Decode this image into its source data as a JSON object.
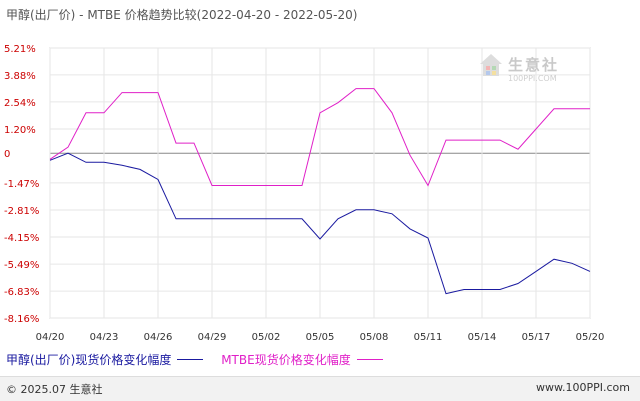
{
  "title": "甲醇(出厂价) - MTBE 价格趋势比较(2022-04-20 - 2022-05-20)",
  "watermark": {
    "name": "生意社",
    "url": "100PPI.COM"
  },
  "footer": {
    "copyright": "© 2025.07 生意社",
    "url": "www.100PPI.com"
  },
  "colors": {
    "methanol": "#1a1aa0",
    "mtbe": "#e020c8",
    "zero_line": "#888888",
    "grid": "#e6e6e6"
  },
  "chart_data": {
    "type": "line",
    "title": "甲醇(出厂价) - MTBE 价格趋势比较(2022-04-20 - 2022-05-20)",
    "xlabel": "",
    "ylabel": "",
    "ylim": [
      -8.16,
      5.21
    ],
    "yticks": [
      "5.21%",
      "3.88%",
      "2.54%",
      "1.20%",
      "0",
      "-1.47%",
      "-2.81%",
      "-4.15%",
      "-5.49%",
      "-6.83%",
      "-8.16%"
    ],
    "ytick_values": [
      5.21,
      3.88,
      2.54,
      1.2,
      0,
      -1.47,
      -2.81,
      -4.15,
      -5.49,
      -6.83,
      -8.16
    ],
    "xticks": [
      "04/20",
      "04/23",
      "04/26",
      "04/29",
      "05/02",
      "05/05",
      "05/08",
      "05/11",
      "05/14",
      "05/17",
      "05/20"
    ],
    "x": [
      "04/20",
      "04/21",
      "04/22",
      "04/23",
      "04/24",
      "04/25",
      "04/26",
      "04/27",
      "04/28",
      "04/29",
      "04/30",
      "05/01",
      "05/02",
      "05/03",
      "05/04",
      "05/05",
      "05/06",
      "05/07",
      "05/08",
      "05/09",
      "05/10",
      "05/11",
      "05/12",
      "05/13",
      "05/14",
      "05/15",
      "05/16",
      "05/17",
      "05/18",
      "05/19",
      "05/20"
    ],
    "grid": true,
    "legend_position": "bottom-left",
    "series": [
      {
        "name": "甲醇(出厂价)现货价格变化幅度",
        "color": "#1a1aa0",
        "values": [
          -0.35,
          0.0,
          -0.45,
          -0.45,
          -0.6,
          -0.8,
          -1.3,
          -3.25,
          -3.25,
          -3.25,
          -3.25,
          -3.25,
          -3.25,
          -3.25,
          -3.25,
          -4.25,
          -3.25,
          -2.8,
          -2.8,
          -3.0,
          -3.75,
          -4.2,
          -6.95,
          -6.75,
          -6.75,
          -6.75,
          -6.45,
          -5.85,
          -5.25,
          -5.45,
          -5.85
        ]
      },
      {
        "name": "MTBE现货价格变化幅度",
        "color": "#e020c8",
        "values": [
          -0.3,
          0.3,
          2.0,
          2.0,
          3.0,
          3.0,
          3.0,
          0.5,
          0.5,
          -1.6,
          -1.6,
          -1.6,
          -1.6,
          -1.6,
          -1.6,
          2.0,
          2.5,
          3.2,
          3.2,
          2.0,
          -0.1,
          -1.6,
          0.65,
          0.65,
          0.65,
          0.65,
          0.2,
          1.2,
          2.2,
          2.2,
          2.2
        ]
      }
    ]
  },
  "legend": {
    "methanol_label": "甲醇(出厂价)现货价格变化幅度",
    "mtbe_label": "MTBE现货价格变化幅度"
  }
}
